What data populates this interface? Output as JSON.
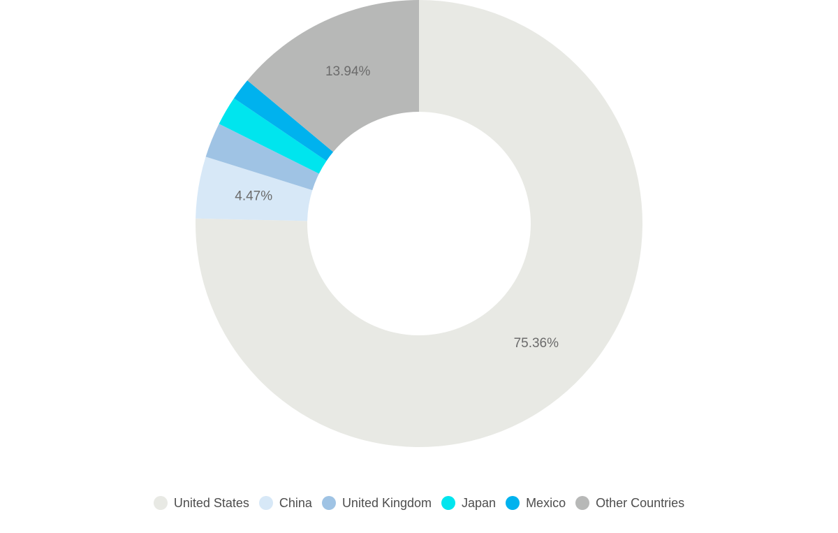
{
  "chart_data": {
    "type": "pie",
    "subtype": "donut",
    "title": "",
    "start_angle_deg": 0,
    "direction": "clockwise",
    "inner_radius_ratio": 0.5,
    "background_color": "#ffffff",
    "label_color": "#6b6b6b",
    "legend_text_color": "#4d4d4d",
    "legend_position": "bottom",
    "categories": [
      "United States",
      "China",
      "United Kingdom",
      "Japan",
      "Mexico",
      "Other Countries"
    ],
    "values": [
      75.36,
      4.47,
      2.53,
      2.11,
      1.59,
      13.94
    ],
    "slices": [
      {
        "name": "United States",
        "value": 75.36,
        "color": "#e8e9e4",
        "label": "75.36%"
      },
      {
        "name": "China",
        "value": 4.47,
        "color": "#d7e8f7",
        "label": "4.47%"
      },
      {
        "name": "United Kingdom",
        "value": 2.53,
        "color": "#9fc3e4",
        "label": ""
      },
      {
        "name": "Japan",
        "value": 2.11,
        "color": "#00e5ee",
        "label": ""
      },
      {
        "name": "Mexico",
        "value": 1.59,
        "color": "#00b2ee",
        "label": ""
      },
      {
        "name": "Other Countries",
        "value": 13.94,
        "color": "#b7b8b7",
        "label": "13.94%"
      }
    ]
  }
}
